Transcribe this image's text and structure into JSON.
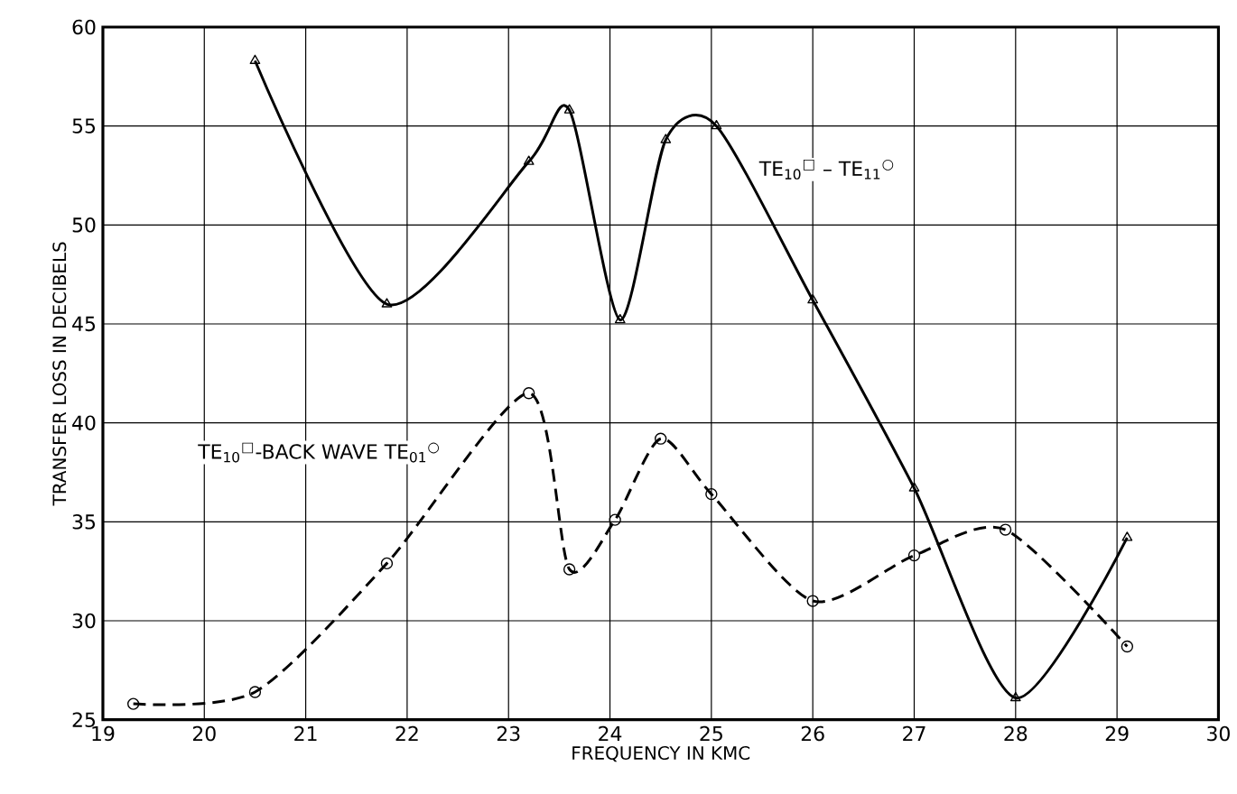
{
  "chart_data": {
    "type": "line",
    "xlabel": "FREQUENCY IN KMC",
    "ylabel": "TRANSFER LOSS IN DECIBELS",
    "xlim": [
      19,
      30
    ],
    "ylim": [
      25,
      60
    ],
    "xticks": [
      19,
      20,
      21,
      22,
      23,
      24,
      25,
      26,
      27,
      28,
      29,
      30
    ],
    "yticks": [
      25,
      30,
      35,
      40,
      45,
      50,
      55,
      60
    ],
    "grid": true,
    "series": [
      {
        "name": "TE$_{10}$$^{□}$ – TE$_{11}$$^{○}$",
        "color": "#000000",
        "marker": "triangle",
        "line_style": "solid",
        "x": [
          20.5,
          21.8,
          23.2,
          23.6,
          24.1,
          24.55,
          25.05,
          26.0,
          27.0,
          28.0,
          29.1
        ],
        "values": [
          58.3,
          46.0,
          53.2,
          55.8,
          45.2,
          54.3,
          55.0,
          46.2,
          36.7,
          26.1,
          34.2
        ]
      },
      {
        "name": "TE$_{10}$$^{□}$-BACK WAVE TE$_{01}$$^{○}$",
        "color": "#000000",
        "marker": "circle",
        "line_style": "dashed",
        "x": [
          19.3,
          20.5,
          21.8,
          23.2,
          23.6,
          24.05,
          24.5,
          25.0,
          26.0,
          27.0,
          27.9,
          29.1
        ],
        "values": [
          25.8,
          26.4,
          32.9,
          41.5,
          32.6,
          35.1,
          39.2,
          36.4,
          31.0,
          33.3,
          34.6,
          28.7
        ]
      }
    ]
  }
}
